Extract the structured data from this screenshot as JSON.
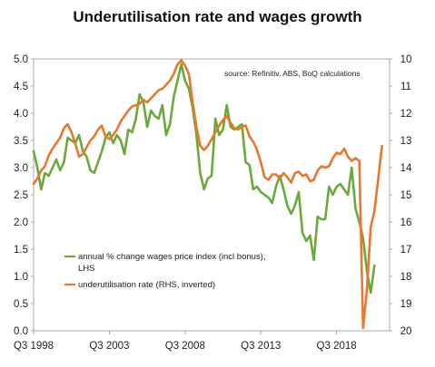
{
  "chart_data": {
    "type": "line",
    "title": "Underutilisation rate and wages growth",
    "source_note": "source:  Refinitiv, ABS, BoQ calculations",
    "x_tick_labels": [
      "Q3 1998",
      "Q3 2003",
      "Q3 2008",
      "Q3 2013",
      "Q3 2018"
    ],
    "x_tick_values": [
      1998.5,
      2003.5,
      2008.5,
      2013.5,
      2018.5
    ],
    "x_range": [
      1998.5,
      2022.0
    ],
    "y_left": {
      "range": [
        0.0,
        5.0
      ],
      "ticks": [
        0.0,
        0.5,
        1.0,
        1.5,
        2.0,
        2.5,
        3.0,
        3.5,
        4.0,
        4.5,
        5.0
      ],
      "tick_labels": [
        "0.0",
        "0.5",
        "1.0",
        "1.5",
        "2.0",
        "2.5",
        "3.0",
        "3.5",
        "4.0",
        "4.5",
        "5.0"
      ]
    },
    "y_right": {
      "range": [
        10,
        20
      ],
      "inverted": true,
      "ticks": [
        10,
        11,
        12,
        13,
        14,
        15,
        16,
        17,
        18,
        19,
        20
      ],
      "tick_labels": [
        "10",
        "11",
        "12",
        "13",
        "14",
        "15",
        "16",
        "17",
        "18",
        "19",
        "20"
      ]
    },
    "grid": false,
    "legend_position": "bottom-left",
    "series": [
      {
        "name": "annual % change wages price index (incl bonus), LHS",
        "axis": "left",
        "color": "#6aaa3a",
        "points": [
          [
            1998.5,
            3.3
          ],
          [
            1998.75,
            3.0
          ],
          [
            1999.0,
            2.6
          ],
          [
            1999.25,
            2.9
          ],
          [
            1999.5,
            2.85
          ],
          [
            1999.75,
            3.0
          ],
          [
            2000.0,
            3.15
          ],
          [
            2000.25,
            2.95
          ],
          [
            2000.5,
            3.1
          ],
          [
            2000.75,
            3.55
          ],
          [
            2001.0,
            3.5
          ],
          [
            2001.25,
            3.45
          ],
          [
            2001.5,
            3.6
          ],
          [
            2001.75,
            3.3
          ],
          [
            2002.0,
            3.2
          ],
          [
            2002.25,
            2.95
          ],
          [
            2002.5,
            2.9
          ],
          [
            2002.75,
            3.1
          ],
          [
            2003.0,
            3.3
          ],
          [
            2003.25,
            3.55
          ],
          [
            2003.5,
            3.65
          ],
          [
            2003.75,
            3.45
          ],
          [
            2004.0,
            3.6
          ],
          [
            2004.25,
            3.5
          ],
          [
            2004.5,
            3.25
          ],
          [
            2004.75,
            3.7
          ],
          [
            2005.0,
            3.65
          ],
          [
            2005.25,
            3.9
          ],
          [
            2005.5,
            4.35
          ],
          [
            2005.75,
            4.2
          ],
          [
            2006.0,
            3.75
          ],
          [
            2006.25,
            4.05
          ],
          [
            2006.5,
            3.95
          ],
          [
            2006.75,
            3.9
          ],
          [
            2007.0,
            4.15
          ],
          [
            2007.25,
            3.6
          ],
          [
            2007.5,
            3.8
          ],
          [
            2007.75,
            4.3
          ],
          [
            2008.0,
            4.6
          ],
          [
            2008.25,
            4.9
          ],
          [
            2008.5,
            4.6
          ],
          [
            2008.75,
            4.45
          ],
          [
            2009.0,
            4.1
          ],
          [
            2009.25,
            3.6
          ],
          [
            2009.5,
            2.9
          ],
          [
            2009.75,
            2.6
          ],
          [
            2010.0,
            2.8
          ],
          [
            2010.25,
            2.85
          ],
          [
            2010.5,
            3.9
          ],
          [
            2010.75,
            3.6
          ],
          [
            2011.0,
            3.7
          ],
          [
            2011.25,
            4.15
          ],
          [
            2011.5,
            3.75
          ],
          [
            2011.75,
            3.7
          ],
          [
            2012.0,
            3.75
          ],
          [
            2012.25,
            3.8
          ],
          [
            2012.5,
            3.1
          ],
          [
            2012.75,
            3.05
          ],
          [
            2013.0,
            2.6
          ],
          [
            2013.25,
            2.65
          ],
          [
            2013.5,
            2.55
          ],
          [
            2013.75,
            2.5
          ],
          [
            2014.0,
            2.45
          ],
          [
            2014.25,
            2.35
          ],
          [
            2014.5,
            2.65
          ],
          [
            2014.75,
            2.85
          ],
          [
            2015.0,
            2.6
          ],
          [
            2015.25,
            2.3
          ],
          [
            2015.5,
            2.15
          ],
          [
            2015.75,
            2.3
          ],
          [
            2016.0,
            2.55
          ],
          [
            2016.25,
            1.8
          ],
          [
            2016.5,
            1.65
          ],
          [
            2016.75,
            1.75
          ],
          [
            2017.0,
            1.3
          ],
          [
            2017.25,
            2.1
          ],
          [
            2017.5,
            2.05
          ],
          [
            2017.75,
            2.05
          ],
          [
            2018.0,
            2.65
          ],
          [
            2018.25,
            2.5
          ],
          [
            2018.5,
            2.65
          ],
          [
            2018.75,
            2.7
          ],
          [
            2019.0,
            2.6
          ],
          [
            2019.25,
            2.5
          ],
          [
            2019.5,
            3.0
          ],
          [
            2019.75,
            2.25
          ],
          [
            2020.0,
            2.0
          ],
          [
            2020.25,
            1.7
          ],
          [
            2020.5,
            1.1
          ],
          [
            2020.75,
            0.7
          ],
          [
            2021.0,
            1.2
          ]
        ]
      },
      {
        "name": "underutilisation rate (RHS, inverted)",
        "axis": "right",
        "color": "#e8782b",
        "points": [
          [
            1998.5,
            14.6
          ],
          [
            1998.75,
            14.4
          ],
          [
            1999.0,
            14.1
          ],
          [
            1999.25,
            13.95
          ],
          [
            1999.5,
            13.55
          ],
          [
            1999.75,
            13.3
          ],
          [
            2000.0,
            13.1
          ],
          [
            2000.25,
            12.9
          ],
          [
            2000.5,
            12.55
          ],
          [
            2000.75,
            12.4
          ],
          [
            2001.0,
            12.7
          ],
          [
            2001.25,
            13.1
          ],
          [
            2001.5,
            13.6
          ],
          [
            2001.75,
            13.5
          ],
          [
            2002.0,
            13.25
          ],
          [
            2002.25,
            13.0
          ],
          [
            2002.5,
            12.85
          ],
          [
            2002.75,
            12.6
          ],
          [
            2003.0,
            12.45
          ],
          [
            2003.25,
            12.85
          ],
          [
            2003.5,
            12.95
          ],
          [
            2003.75,
            12.8
          ],
          [
            2004.0,
            12.6
          ],
          [
            2004.25,
            12.3
          ],
          [
            2004.5,
            12.1
          ],
          [
            2004.75,
            11.9
          ],
          [
            2005.0,
            11.75
          ],
          [
            2005.25,
            11.7
          ],
          [
            2005.5,
            11.65
          ],
          [
            2005.75,
            11.5
          ],
          [
            2006.0,
            11.6
          ],
          [
            2006.25,
            11.45
          ],
          [
            2006.5,
            11.3
          ],
          [
            2006.75,
            11.15
          ],
          [
            2007.0,
            11.1
          ],
          [
            2007.25,
            10.95
          ],
          [
            2007.5,
            10.8
          ],
          [
            2007.75,
            10.55
          ],
          [
            2008.0,
            10.2
          ],
          [
            2008.25,
            10.05
          ],
          [
            2008.5,
            10.25
          ],
          [
            2008.75,
            10.55
          ],
          [
            2009.0,
            11.6
          ],
          [
            2009.25,
            12.5
          ],
          [
            2009.5,
            13.2
          ],
          [
            2009.75,
            13.35
          ],
          [
            2010.0,
            13.2
          ],
          [
            2010.25,
            12.95
          ],
          [
            2010.5,
            12.7
          ],
          [
            2010.75,
            12.45
          ],
          [
            2011.0,
            12.25
          ],
          [
            2011.25,
            12.1
          ],
          [
            2011.5,
            12.35
          ],
          [
            2011.75,
            12.55
          ],
          [
            2012.0,
            12.6
          ],
          [
            2012.25,
            12.5
          ],
          [
            2012.5,
            12.45
          ],
          [
            2012.75,
            12.85
          ],
          [
            2013.0,
            13.05
          ],
          [
            2013.25,
            13.35
          ],
          [
            2013.5,
            13.8
          ],
          [
            2013.75,
            14.35
          ],
          [
            2014.0,
            14.45
          ],
          [
            2014.25,
            14.25
          ],
          [
            2014.5,
            14.25
          ],
          [
            2014.75,
            14.4
          ],
          [
            2015.0,
            14.2
          ],
          [
            2015.25,
            14.35
          ],
          [
            2015.5,
            14.55
          ],
          [
            2015.75,
            14.2
          ],
          [
            2016.0,
            14.15
          ],
          [
            2016.25,
            14.3
          ],
          [
            2016.5,
            14.25
          ],
          [
            2016.75,
            14.5
          ],
          [
            2017.0,
            14.45
          ],
          [
            2017.25,
            14.1
          ],
          [
            2017.5,
            13.95
          ],
          [
            2017.75,
            14.0
          ],
          [
            2018.0,
            13.95
          ],
          [
            2018.25,
            13.65
          ],
          [
            2018.5,
            13.45
          ],
          [
            2018.75,
            13.5
          ],
          [
            2019.0,
            13.3
          ],
          [
            2019.25,
            13.6
          ],
          [
            2019.5,
            13.75
          ],
          [
            2019.75,
            13.65
          ],
          [
            2020.0,
            13.75
          ],
          [
            2020.25,
            19.9
          ],
          [
            2020.5,
            18.5
          ],
          [
            2020.75,
            16.2
          ],
          [
            2021.0,
            15.6
          ],
          [
            2021.25,
            14.4
          ],
          [
            2021.5,
            13.2
          ]
        ]
      }
    ]
  }
}
